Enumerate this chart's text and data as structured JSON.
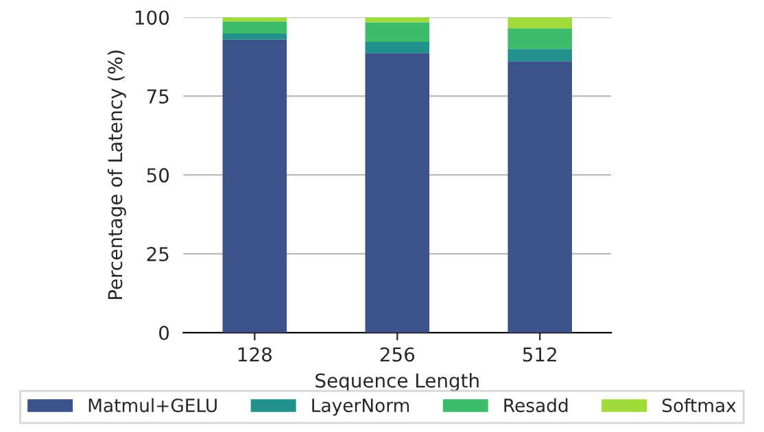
{
  "chart_data": {
    "type": "bar",
    "stacked": true,
    "xlabel": "Sequence Length",
    "ylabel": "Percentage of Latency (%)",
    "categories": [
      "128",
      "256",
      "512"
    ],
    "series": [
      {
        "name": "Matmul+GELU",
        "color": "#3b528b",
        "values": [
          92.9,
          88.7,
          86.1
        ]
      },
      {
        "name": "LayerNorm",
        "color": "#21918c",
        "values": [
          1.9,
          3.5,
          3.9
        ]
      },
      {
        "name": "Resadd",
        "color": "#3dbd6b",
        "values": [
          3.9,
          6.2,
          6.5
        ]
      },
      {
        "name": "Softmax",
        "color": "#9fdc3a",
        "values": [
          1.3,
          1.6,
          3.5
        ]
      }
    ],
    "ylim": [
      0,
      100
    ],
    "yticks": [
      0,
      25,
      50,
      75,
      100
    ],
    "grid": "y",
    "legend": "bottom"
  }
}
